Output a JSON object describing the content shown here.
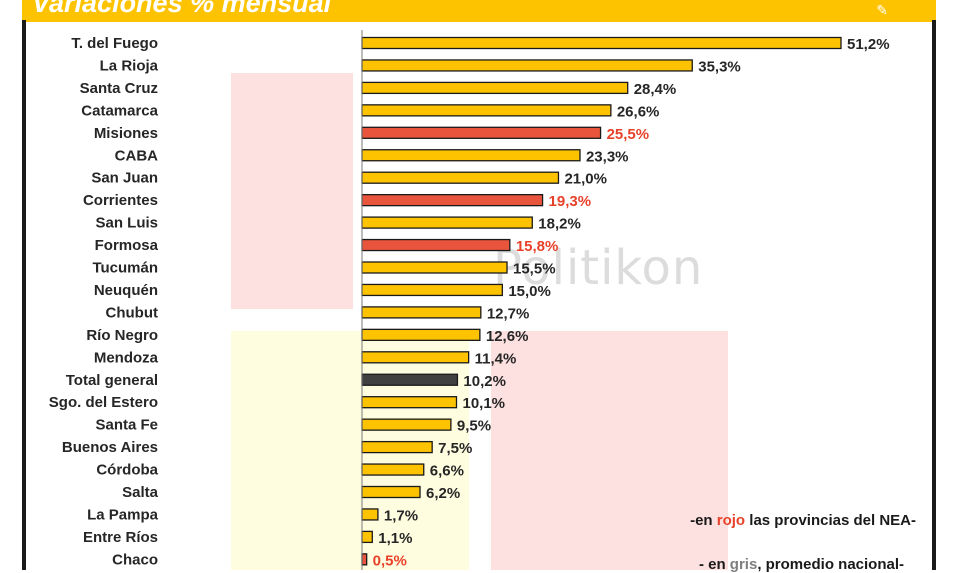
{
  "header": {
    "title": "Variaciones % mensual",
    "icon": "map-icon"
  },
  "watermark": {
    "text": "Politikon"
  },
  "notes": {
    "line1_prefix": "-en ",
    "line1_highlight": "rojo",
    "line1_suffix": " las provincias del NEA-",
    "line2_prefix": "- en ",
    "line2_highlight": "gris",
    "line2_suffix": ", promedio nacional-"
  },
  "colors": {
    "default_bar": "#fdc300",
    "nea_bar": "#e8553c",
    "national_bar": "#404040",
    "nea_label": "#e8412a",
    "default_label": "#262626",
    "header": "#fdc300"
  },
  "chart_data": {
    "type": "bar",
    "orientation": "horizontal",
    "title": "Variaciones % mensual",
    "categories": [
      "T. del Fuego",
      "La Rioja",
      "Santa Cruz",
      "Catamarca",
      "Misiones",
      "CABA",
      "San Juan",
      "Corrientes",
      "San Luis",
      "Formosa",
      "Tucumán",
      "Neuquén",
      "Chubut",
      "Río Negro",
      "Mendoza",
      "Total general",
      "Sgo. del Estero",
      "Santa Fe",
      "Buenos Aires",
      "Córdoba",
      "Salta",
      "La Pampa",
      "Entre Ríos",
      "Chaco"
    ],
    "values": [
      51.2,
      35.3,
      28.4,
      26.6,
      25.5,
      23.3,
      21.0,
      19.3,
      18.2,
      15.8,
      15.5,
      15.0,
      12.7,
      12.6,
      11.4,
      10.2,
      10.1,
      9.5,
      7.5,
      6.6,
      6.2,
      1.7,
      1.1,
      0.5
    ],
    "labels": [
      "51,2%",
      "35,3%",
      "28,4%",
      "26,6%",
      "25,5%",
      "23,3%",
      "21,0%",
      "19,3%",
      "18,2%",
      "15,8%",
      "15,5%",
      "15,0%",
      "12,7%",
      "12,6%",
      "11,4%",
      "10,2%",
      "10,1%",
      "9,5%",
      "7,5%",
      "6,6%",
      "6,2%",
      "1,7%",
      "1,1%",
      "0,5%"
    ],
    "groups": [
      "default",
      "default",
      "default",
      "default",
      "nea",
      "default",
      "default",
      "nea",
      "default",
      "nea",
      "default",
      "default",
      "default",
      "default",
      "default",
      "national",
      "default",
      "default",
      "default",
      "default",
      "default",
      "default",
      "default",
      "nea"
    ],
    "xlim": [
      0,
      51.2
    ],
    "grid": false,
    "legend": "none"
  }
}
